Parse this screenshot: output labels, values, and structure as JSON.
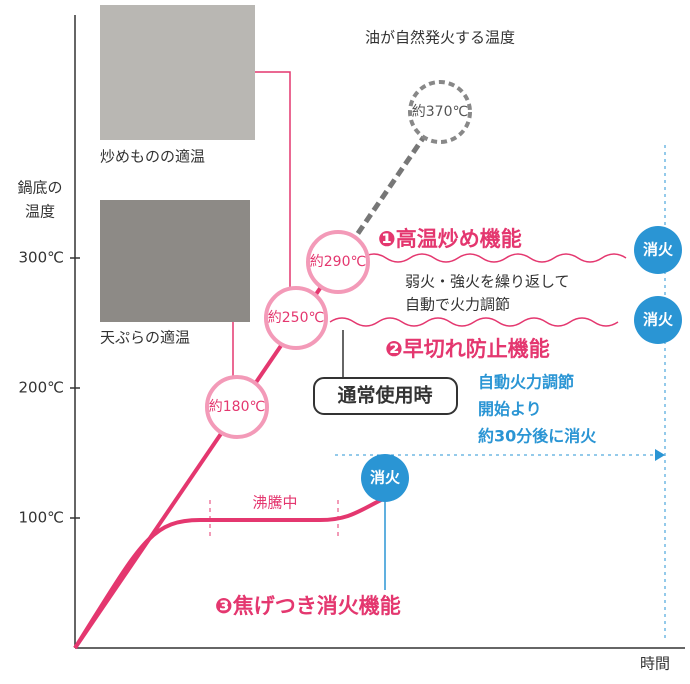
{
  "axis": {
    "y_label": [
      "鍋底の",
      "温度"
    ],
    "x_label": "時間",
    "ticks": [
      "300℃",
      "200℃",
      "100℃"
    ]
  },
  "top_note": "油が自然発火する温度",
  "circles": {
    "c370": "約370℃",
    "c290": "約290℃",
    "c250": "約250℃",
    "c180": "約180℃"
  },
  "photos": {
    "stir_fry": "炒めものの適温",
    "tempura": "天ぷらの適温"
  },
  "features": {
    "f1": {
      "title": "❶高温炒め機能",
      "desc": [
        "弱火・強火を繰り返して",
        "自動で火力調節"
      ]
    },
    "f2": {
      "title": "❷早切れ防止機能"
    },
    "f3": {
      "title": "❸焦げつき消火機能"
    }
  },
  "normal": "通常使用時",
  "auto_note": [
    "自動火力調節",
    "開始より",
    "約30分後に消火"
  ],
  "boiling": "沸騰中",
  "off": [
    "消火",
    "消火",
    "消火"
  ]
}
